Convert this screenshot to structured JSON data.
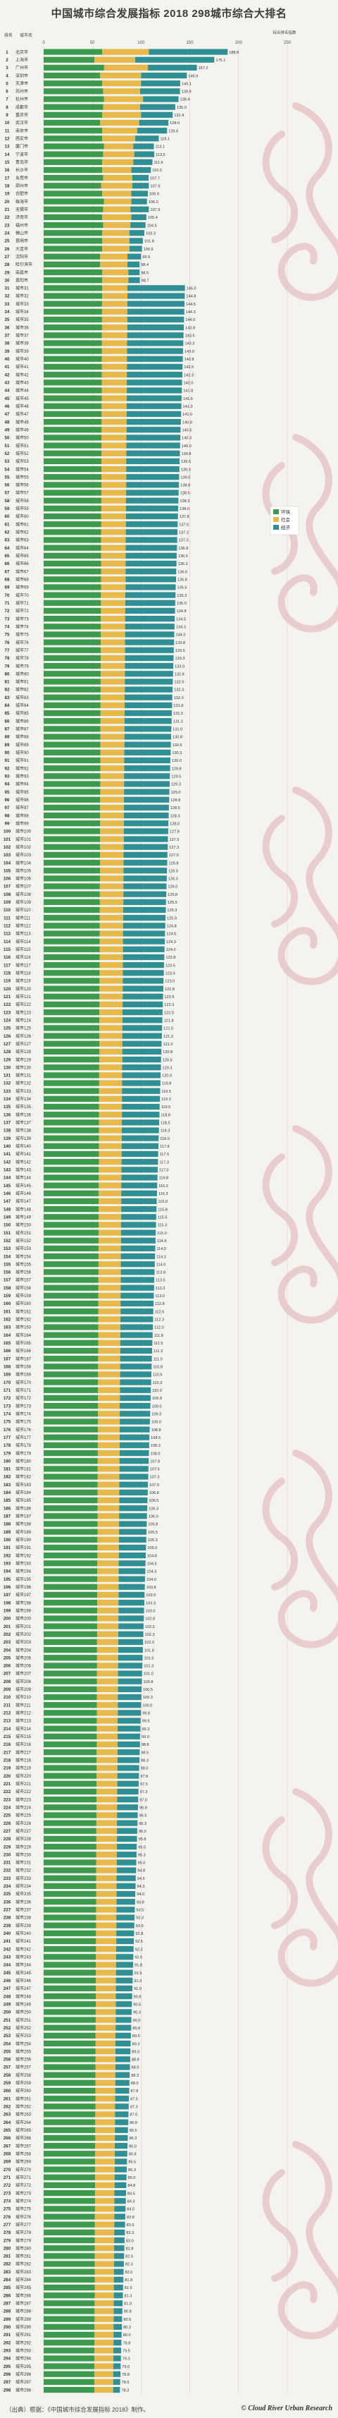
{
  "title": "中国城市综合发展指标 2018 298城市综合大排名",
  "footer": {
    "source": "（出典）根据：《中国城市综合发展指标 2018》制作。",
    "brand": "© Cloud River Urban Research"
  },
  "colors": {
    "环境": "#3b9a4e",
    "社会": "#e6b94a",
    "经济": "#2e8f95"
  },
  "chart_data": {
    "type": "bar",
    "orientation": "horizontal",
    "stacked": true,
    "column_headers": {
      "rank": "排名",
      "city": "城市名"
    },
    "total_label": "综合排名指数",
    "xlim": [
      0,
      250
    ],
    "xticks": [
      0,
      50,
      100,
      150,
      200,
      250
    ],
    "legend": {
      "entries": [
        "环境",
        "社会",
        "经济"
      ],
      "placement": "upper-right"
    },
    "series_names": [
      "环境",
      "社会",
      "经济"
    ],
    "rows": []
  }
}
